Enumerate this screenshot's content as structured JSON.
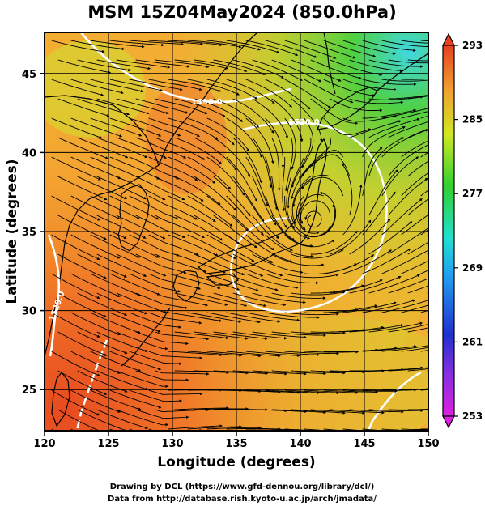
{
  "title": "MSM 15Z04May2024 (850.0hPa)",
  "xlabel": "Longitude (degrees)",
  "ylabel": "Latitude  (degrees)",
  "x_ticks": [
    "120",
    "125",
    "130",
    "135",
    "140",
    "145",
    "150"
  ],
  "y_ticks": [
    "25",
    "30",
    "35",
    "40",
    "45"
  ],
  "colorbar_ticks": [
    "293",
    "285",
    "277",
    "269",
    "261",
    "253"
  ],
  "contour_labels": [
    "1490.0",
    "1520.0",
    "1520.0"
  ],
  "credit_line1": "Drawing by DCL (https://www.gfd-dennou.org/library/dcl/)",
  "credit_line2": "Data from http://database.rish.kyoto-u.ac.jp/arch/jmadata/",
  "chart_data": {
    "type": "heatmap",
    "title": "MSM 15Z04May2024 (850.0hPa)",
    "xlabel": "Longitude (degrees)",
    "ylabel": "Latitude  (degrees)",
    "xlim": [
      120,
      150
    ],
    "ylim": [
      22.4,
      47.6
    ],
    "x_ticks": [
      120,
      125,
      130,
      135,
      140,
      145,
      150
    ],
    "y_ticks": [
      25,
      30,
      35,
      40,
      45
    ],
    "colorbar": {
      "min": 253,
      "max": 293,
      "ticks": [
        293,
        285,
        277,
        269,
        261,
        253
      ]
    },
    "grid": true,
    "overlays": [
      "temperature shading",
      "streamlines",
      "geopotential height contours (white)",
      "coastlines"
    ],
    "contours": [
      {
        "label": "1490.0",
        "lon": 130.3,
        "lat": 43.8
      },
      {
        "label": "1520.0",
        "lon": 139.4,
        "lat": 42.7
      },
      {
        "label": "1520.0",
        "lon": 121.4,
        "lat": 30.3
      }
    ],
    "low_center": {
      "lon": 141,
      "lat": 35.6
    }
  }
}
